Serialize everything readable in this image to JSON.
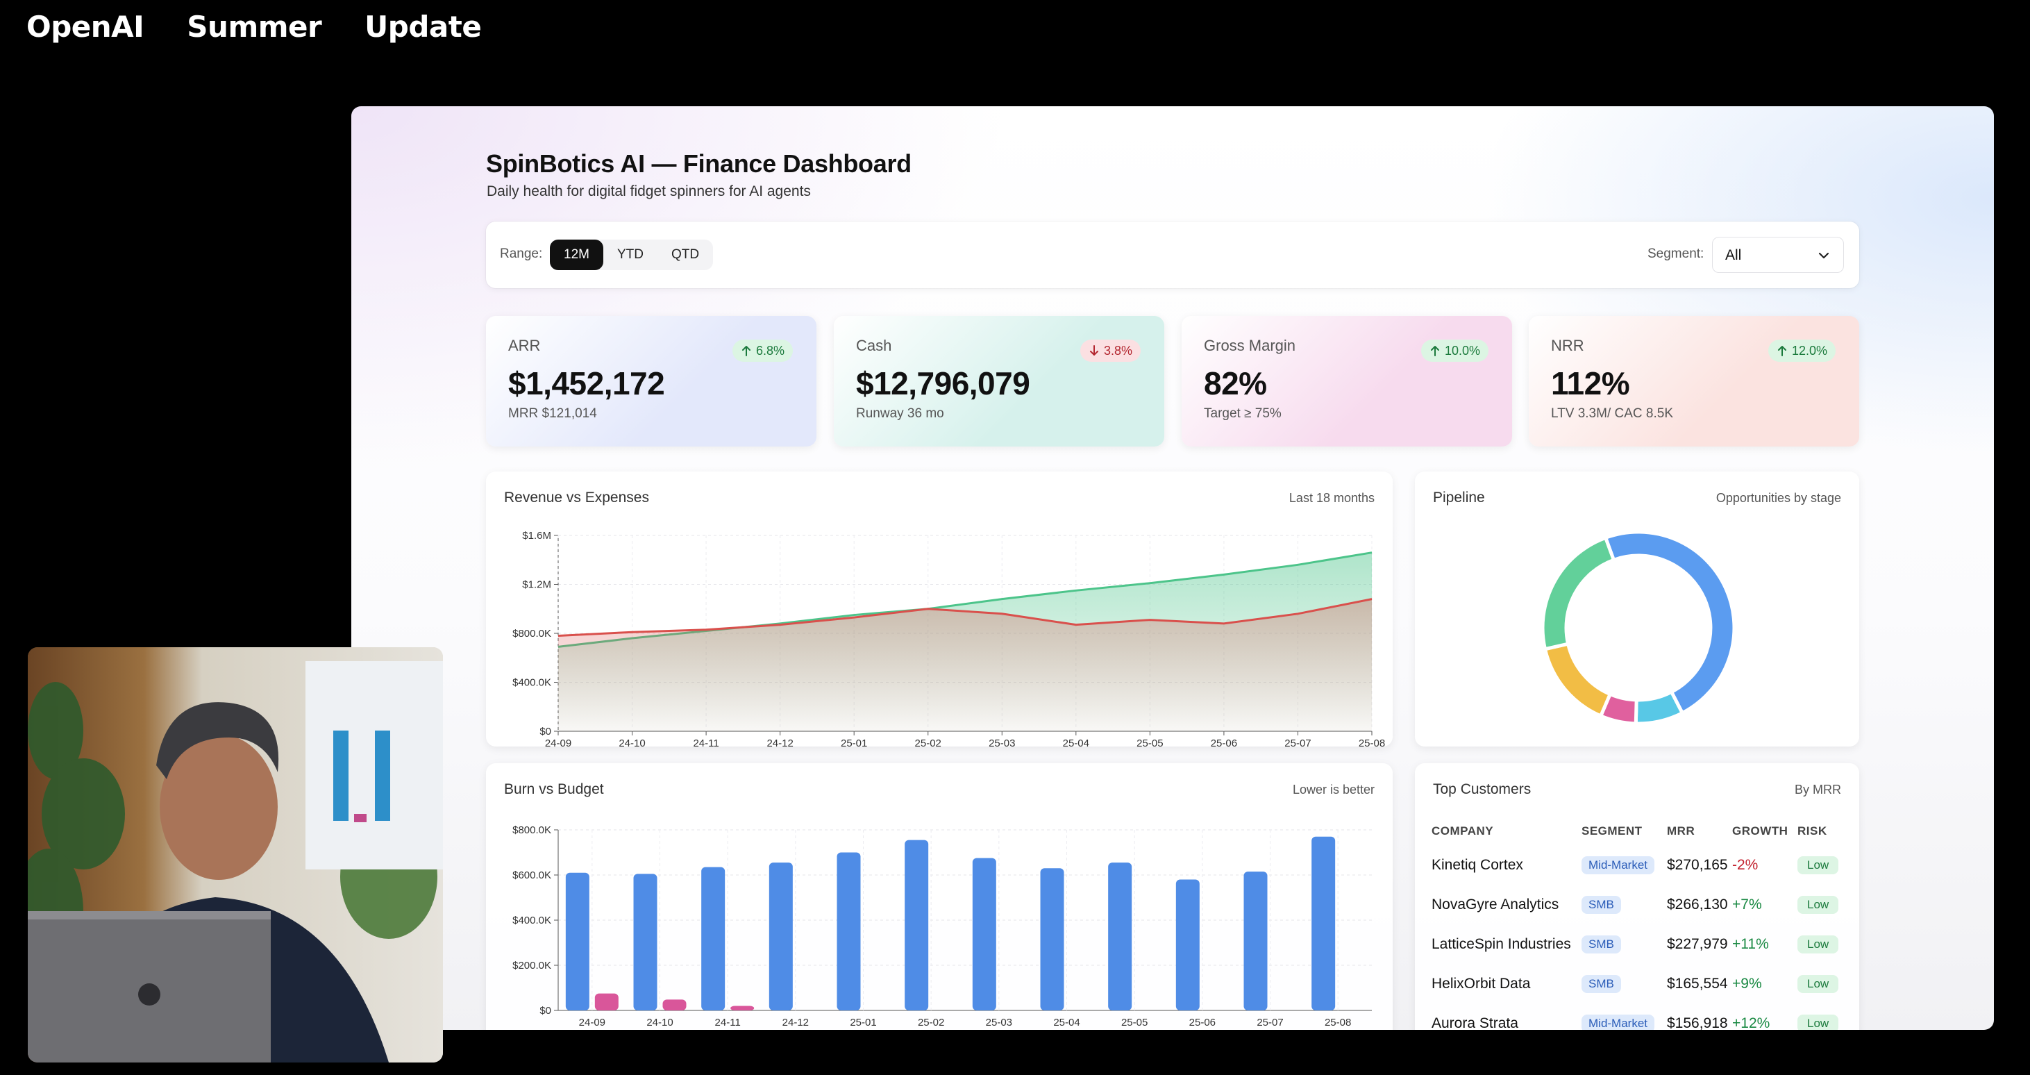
{
  "caption": {
    "words": [
      "OpenAI",
      "Summer",
      "Update"
    ]
  },
  "app": {
    "title": "SpinBotics AI — Finance Dashboard",
    "subtitle": "Daily health for digital fidget spinners for AI agents"
  },
  "filters": {
    "range_label": "Range:",
    "ranges": [
      "12M",
      "YTD",
      "QTD"
    ],
    "active_range": "12M",
    "segment_label": "Segment:",
    "segment_value": "All"
  },
  "kpis": [
    {
      "label": "ARR",
      "value": "$1,452,172",
      "sub": "MRR $121,014",
      "change": "6.8%",
      "direction": "up",
      "gradient": "#e3e8fb"
    },
    {
      "label": "Cash",
      "value": "$12,796,079",
      "sub": "Runway 36 mo",
      "change": "3.8%",
      "direction": "down",
      "gradient": "#d6f1ec"
    },
    {
      "label": "Gross Margin",
      "value": "82%",
      "sub": "Target ≥ 75%",
      "change": "10.0%",
      "direction": "up",
      "gradient": "#f7dbee"
    },
    {
      "label": "NRR",
      "value": "112%",
      "sub": "LTV 3.3M/ CAC 8.5K",
      "change": "12.0%",
      "direction": "up",
      "gradient": "#fbe3e0"
    }
  ],
  "revenue_panel": {
    "title": "Revenue vs Expenses",
    "note": "Last 18 months"
  },
  "pipeline_panel": {
    "title": "Pipeline",
    "note": "Opportunities by stage"
  },
  "burn_panel": {
    "title": "Burn vs Budget",
    "note": "Lower is better"
  },
  "customers_panel": {
    "title": "Top Customers",
    "note": "By MRR",
    "columns": [
      "COMPANY",
      "SEGMENT",
      "MRR",
      "GROWTH",
      "RISK"
    ],
    "rows": [
      {
        "company": "Kinetiq Cortex",
        "segment": "Mid-Market",
        "mrr": "$270,165",
        "growth": "-2%",
        "risk": "Low"
      },
      {
        "company": "NovaGyre Analytics",
        "segment": "SMB",
        "mrr": "$266,130",
        "growth": "+7%",
        "risk": "Low"
      },
      {
        "company": "LatticeSpin Industries",
        "segment": "SMB",
        "mrr": "$227,979",
        "growth": "+11%",
        "risk": "Low"
      },
      {
        "company": "HelixOrbit Data",
        "segment": "SMB",
        "mrr": "$165,554",
        "growth": "+9%",
        "risk": "Low"
      },
      {
        "company": "Aurora Strata",
        "segment": "Mid-Market",
        "mrr": "$156,918",
        "growth": "+12%",
        "risk": "Low"
      }
    ]
  },
  "chart_data": [
    {
      "type": "area",
      "categories": [
        "24-09",
        "24-10",
        "24-11",
        "24-12",
        "25-01",
        "25-02",
        "25-03",
        "25-04",
        "25-05",
        "25-06",
        "25-07",
        "25-08"
      ],
      "series": [
        {
          "color": "#4cc48a",
          "values": [
            690000,
            760000,
            820000,
            880000,
            950000,
            1000000,
            1080000,
            1150000,
            1210000,
            1280000,
            1360000,
            1460000
          ]
        },
        {
          "color": "#d9504c",
          "values": [
            780000,
            810000,
            830000,
            870000,
            930000,
            1000000,
            960000,
            870000,
            910000,
            880000,
            960000,
            1080000
          ]
        }
      ],
      "yticks": [
        "$0",
        "$400.0K",
        "$800.0K",
        "$1.2M",
        "$1.6M"
      ],
      "ylim": [
        0,
        1600000
      ],
      "grid": true
    },
    {
      "type": "pie",
      "donut": true,
      "slices": [
        {
          "value": 48,
          "color": "#5b9cf0"
        },
        {
          "value": 8,
          "color": "#58c8e6"
        },
        {
          "value": 6,
          "color": "#e0609e"
        },
        {
          "value": 15,
          "color": "#f2bd45"
        },
        {
          "value": 23,
          "color": "#62d09a"
        }
      ]
    },
    {
      "type": "bar",
      "categories": [
        "24-09",
        "24-10",
        "24-11",
        "24-12",
        "25-01",
        "25-02",
        "25-03",
        "25-04",
        "25-05",
        "25-06",
        "25-07",
        "25-08"
      ],
      "series": [
        {
          "color": "#4f8ce6",
          "values": [
            610000,
            605000,
            635000,
            655000,
            700000,
            755000,
            675000,
            630000,
            655000,
            580000,
            615000,
            770000
          ]
        },
        {
          "color": "#d9569a",
          "values": [
            75000,
            48000,
            20000,
            0,
            0,
            0,
            0,
            0,
            0,
            0,
            0,
            0
          ]
        }
      ],
      "yticks": [
        "$0",
        "$200.0K",
        "$400.0K",
        "$600.0K",
        "$800.0K"
      ],
      "ylim": [
        0,
        800000
      ],
      "grid": true
    }
  ]
}
